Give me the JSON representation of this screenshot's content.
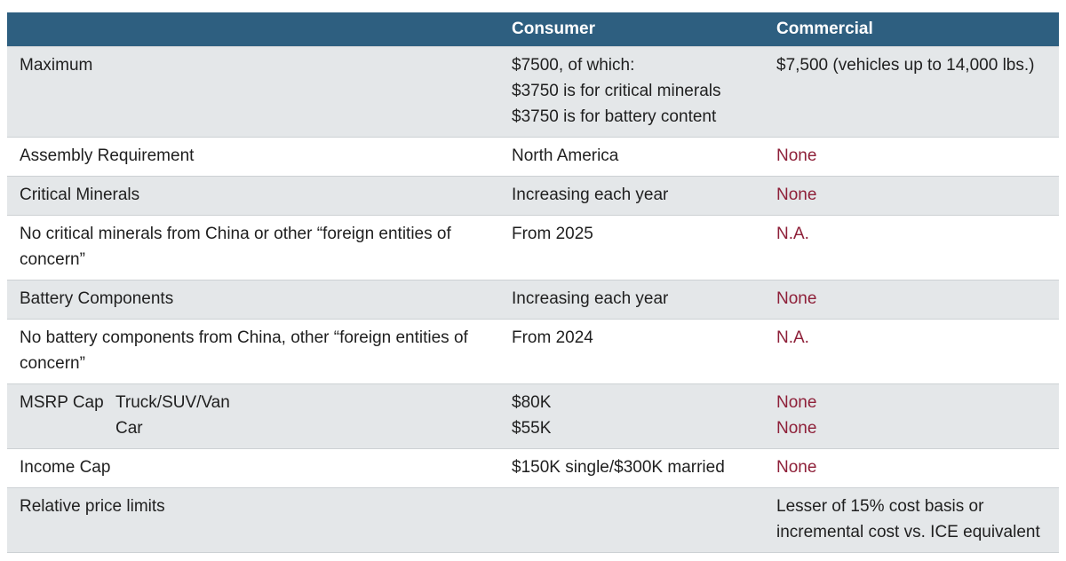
{
  "theme": {
    "header_bg": "#2e5f80",
    "header_text": "#ffffff",
    "row_shaded_bg": "#e4e7e9",
    "row_plain_bg": "#ffffff",
    "border": "#cdd1d4",
    "body_text": "#1f1f1f",
    "accent_red": "#8e2039"
  },
  "chart_data": {
    "type": "table",
    "title": "",
    "columns": [
      "",
      "Consumer",
      "Commercial"
    ],
    "rows": [
      {
        "label": "Maximum",
        "sublabels": [],
        "consumer": [
          "$7500, of which:",
          "$3750 is for critical minerals",
          "$3750 is for battery content"
        ],
        "consumer_red": false,
        "commercial": [
          "$7,500 (vehicles up to 14,000 lbs.)"
        ],
        "commercial_red": false,
        "shaded": true
      },
      {
        "label": "Assembly Requirement",
        "sublabels": [],
        "consumer": [
          "North America"
        ],
        "consumer_red": false,
        "commercial": [
          "None"
        ],
        "commercial_red": true,
        "shaded": false
      },
      {
        "label": "Critical Minerals",
        "sublabels": [],
        "consumer": [
          "Increasing each year"
        ],
        "consumer_red": false,
        "commercial": [
          "None"
        ],
        "commercial_red": true,
        "shaded": true
      },
      {
        "label": "No critical minerals from China or other “foreign entities of concern”",
        "sublabels": [],
        "consumer": [
          "From 2025"
        ],
        "consumer_red": false,
        "commercial": [
          "N.A."
        ],
        "commercial_red": true,
        "shaded": false
      },
      {
        "label": "Battery Components",
        "sublabels": [],
        "consumer": [
          "Increasing each year"
        ],
        "consumer_red": false,
        "commercial": [
          "None"
        ],
        "commercial_red": true,
        "shaded": true
      },
      {
        "label": "No battery components from China, other “foreign entities of concern”",
        "sublabels": [],
        "consumer": [
          "From 2024"
        ],
        "consumer_red": false,
        "commercial": [
          "N.A."
        ],
        "commercial_red": true,
        "shaded": false
      },
      {
        "label": "MSRP Cap",
        "sublabels": [
          "Truck/SUV/Van",
          "Car"
        ],
        "consumer": [
          "$80K",
          "$55K"
        ],
        "consumer_red": false,
        "commercial": [
          "None",
          "None"
        ],
        "commercial_red": true,
        "shaded": true
      },
      {
        "label": "Income Cap",
        "sublabels": [],
        "consumer": [
          "$150K single/$300K married"
        ],
        "consumer_red": false,
        "commercial": [
          "None"
        ],
        "commercial_red": true,
        "shaded": false
      },
      {
        "label": "Relative price limits",
        "sublabels": [],
        "consumer": [],
        "consumer_red": false,
        "commercial": [
          "Lesser of 15% cost basis or incremental cost vs. ICE equivalent"
        ],
        "commercial_red": false,
        "shaded": true
      }
    ]
  }
}
